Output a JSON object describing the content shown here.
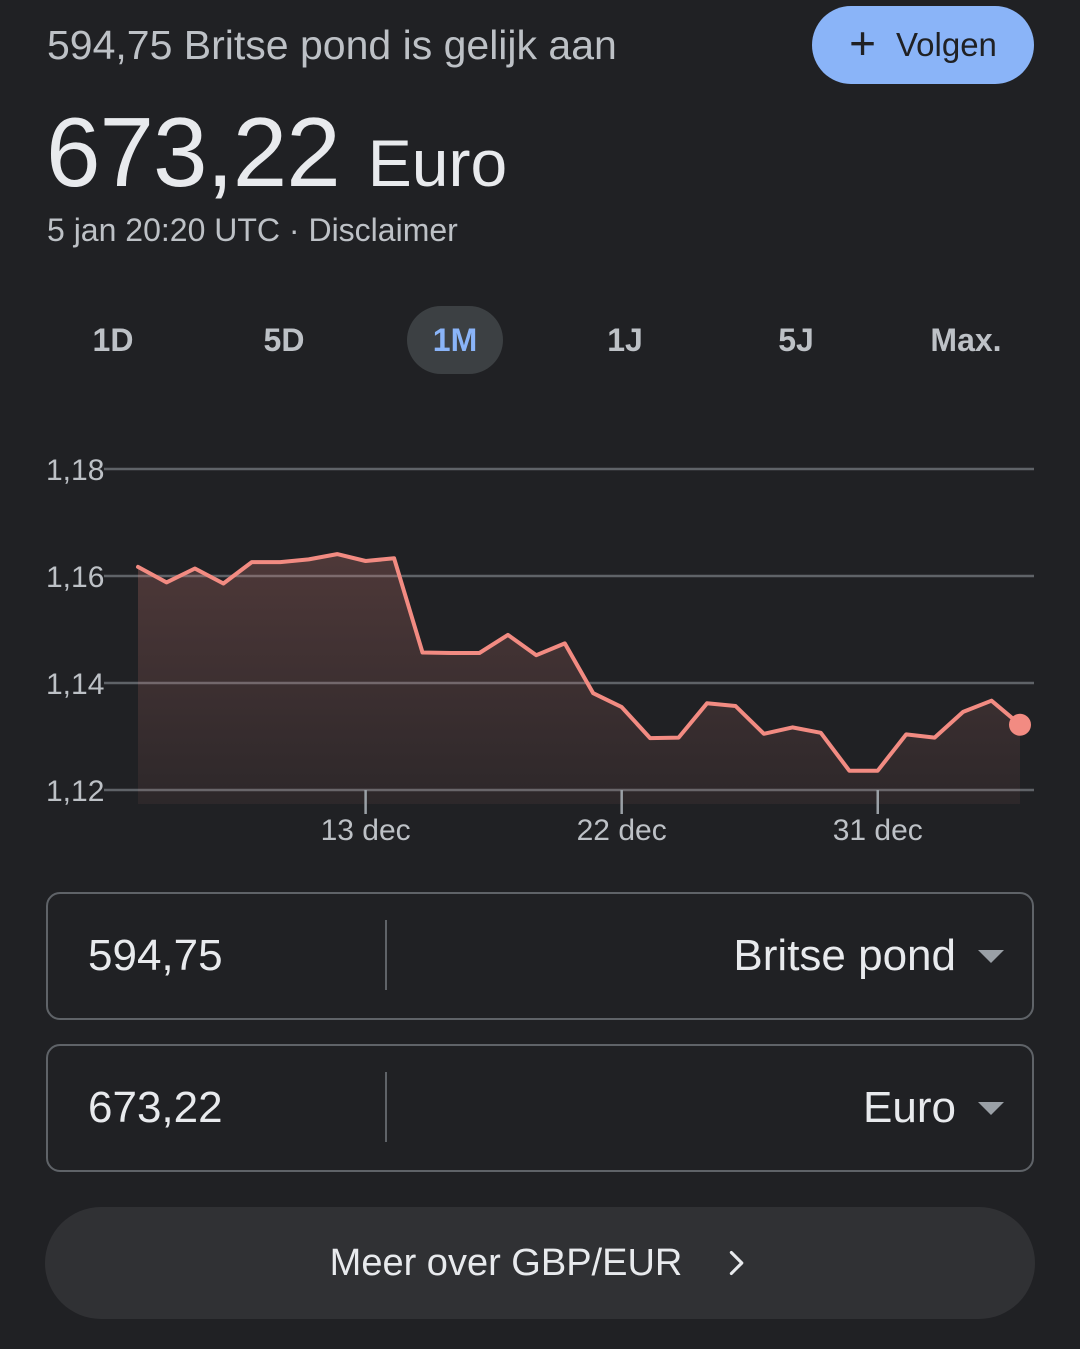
{
  "header": {
    "subtitle": "594,75 Britse pond is gelijk aan",
    "follow_label": "Volgen",
    "value": "673,22",
    "currency": "Euro",
    "timestamp": "5 jan 20:20 UTC",
    "separator": " · ",
    "disclaimer": "Disclaimer"
  },
  "tabs": [
    {
      "label": "1D",
      "active": false
    },
    {
      "label": "5D",
      "active": false
    },
    {
      "label": "1M",
      "active": true
    },
    {
      "label": "1J",
      "active": false
    },
    {
      "label": "5J",
      "active": false
    },
    {
      "label": "Max.",
      "active": false
    }
  ],
  "chart_data": {
    "type": "area",
    "y_ticks": [
      1.18,
      1.16,
      1.14,
      1.12
    ],
    "y_tick_labels": [
      "1,18",
      "1,16",
      "1,14",
      "1,12"
    ],
    "ylim": [
      1.12,
      1.18
    ],
    "x_ticks": [
      {
        "label": "13 dec",
        "index": 8
      },
      {
        "label": "22 dec",
        "index": 17
      },
      {
        "label": "31 dec",
        "index": 26
      }
    ],
    "values": [
      1.1617,
      1.1588,
      1.1614,
      1.1586,
      1.1626,
      1.1626,
      1.1631,
      1.1641,
      1.1628,
      1.1633,
      1.1457,
      1.1456,
      1.1456,
      1.149,
      1.1452,
      1.1474,
      1.1381,
      1.1355,
      1.1297,
      1.1298,
      1.1362,
      1.1357,
      1.1305,
      1.1317,
      1.1307,
      1.1236,
      1.1236,
      1.1304,
      1.1298,
      1.1346,
      1.1367,
      1.1322
    ],
    "grid": true,
    "line_color": "#f28b82",
    "fill_color": "#f28b82"
  },
  "converter": {
    "from_amount": "594,75",
    "from_currency": "Britse pond",
    "to_amount": "673,22",
    "to_currency": "Euro"
  },
  "more_button": {
    "label": "Meer over GBP/EUR"
  }
}
